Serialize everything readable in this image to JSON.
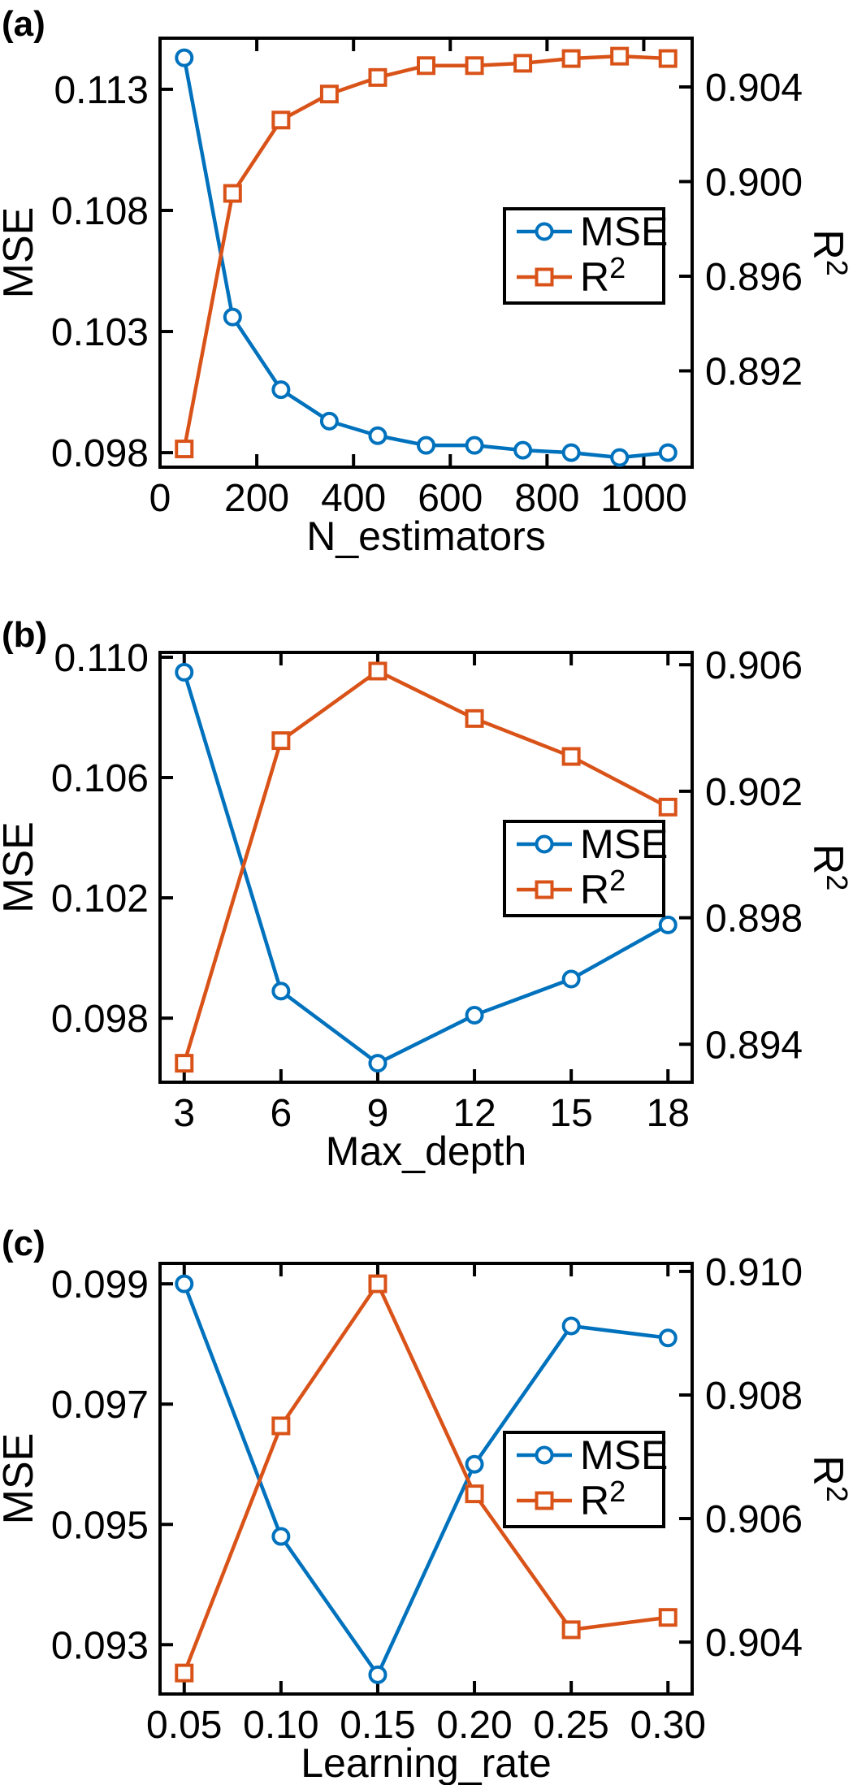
{
  "figure": {
    "description_colors": {
      "mse_line": "#0072BD",
      "r2_line": "#D95319",
      "axes": "#000000",
      "background": "#FFFFFF"
    }
  },
  "chart_data": [
    {
      "type": "line",
      "panel_label": "(a)",
      "xlabel": "N_estimators",
      "ylabel_left": "MSE",
      "ylabel_right": "R²",
      "ylabel_right_base": "R",
      "ylabel_right_sup": "2",
      "x": [
        50,
        150,
        250,
        350,
        450,
        550,
        650,
        750,
        850,
        950,
        1050
      ],
      "series": [
        {
          "id": "mse",
          "name": "MSE",
          "axis": "left",
          "color": "#0072BD",
          "marker": "circle",
          "values": [
            0.1143,
            0.1036,
            0.1006,
            0.0993,
            0.0987,
            0.0983,
            0.0983,
            0.0981,
            0.098,
            0.0978,
            0.098
          ]
        },
        {
          "id": "r2",
          "name": "R²",
          "legend_base": "R",
          "legend_sup": "2",
          "axis": "right",
          "color": "#D95319",
          "marker": "square",
          "values": [
            0.8887,
            0.8995,
            0.9026,
            0.9037,
            0.9044,
            0.9049,
            0.9049,
            0.905,
            0.9052,
            0.9053,
            0.9052
          ]
        }
      ],
      "xlim": [
        0,
        1100
      ],
      "ylim_left": [
        0.0974,
        0.11511
      ],
      "ylim_right": [
        0.88793,
        0.90606
      ],
      "xticks": [
        {
          "v": 0,
          "label": "0"
        },
        {
          "v": 200,
          "label": "200"
        },
        {
          "v": 400,
          "label": "400"
        },
        {
          "v": 600,
          "label": "600"
        },
        {
          "v": 800,
          "label": "800"
        },
        {
          "v": 1000,
          "label": "1000"
        }
      ],
      "yticks_left": [
        {
          "v": 0.098,
          "label": "0.098"
        },
        {
          "v": 0.103,
          "label": "0.103"
        },
        {
          "v": 0.108,
          "label": "0.108"
        },
        {
          "v": 0.113,
          "label": "0.113"
        }
      ],
      "yticks_right": [
        {
          "v": 0.892,
          "label": "0.892"
        },
        {
          "v": 0.896,
          "label": "0.896"
        },
        {
          "v": 0.9,
          "label": "0.900"
        },
        {
          "v": 0.904,
          "label": "0.904"
        }
      ],
      "legend": {
        "entries": [
          "MSE",
          "R²"
        ],
        "position": "middle-right"
      },
      "grid": false
    },
    {
      "type": "line",
      "panel_label": "(b)",
      "xlabel": "Max_depth",
      "ylabel_left": "MSE",
      "ylabel_right": "R²",
      "ylabel_right_base": "R",
      "ylabel_right_sup": "2",
      "x": [
        3,
        6,
        9,
        12,
        15,
        18
      ],
      "series": [
        {
          "id": "mse",
          "name": "MSE",
          "axis": "left",
          "color": "#0072BD",
          "marker": "circle",
          "values": [
            0.1095,
            0.0989,
            0.0965,
            0.0981,
            0.0993,
            0.1011
          ]
        },
        {
          "id": "r2",
          "name": "R²",
          "legend_base": "R",
          "legend_sup": "2",
          "axis": "right",
          "color": "#D95319",
          "marker": "square",
          "values": [
            0.8934,
            0.9036,
            0.9058,
            0.9043,
            0.9031,
            0.9015
          ]
        }
      ],
      "xlim": [
        2.25,
        18.75
      ],
      "ylim_left": [
        0.09587,
        0.11016
      ],
      "ylim_right": [
        0.8928,
        0.90639
      ],
      "xticks": [
        {
          "v": 3,
          "label": "3"
        },
        {
          "v": 6,
          "label": "6"
        },
        {
          "v": 9,
          "label": "9"
        },
        {
          "v": 12,
          "label": "12"
        },
        {
          "v": 15,
          "label": "15"
        },
        {
          "v": 18,
          "label": "18"
        }
      ],
      "yticks_left": [
        {
          "v": 0.098,
          "label": "0.098"
        },
        {
          "v": 0.102,
          "label": "0.102"
        },
        {
          "v": 0.106,
          "label": "0.106"
        },
        {
          "v": 0.11,
          "label": "0.110"
        }
      ],
      "yticks_right": [
        {
          "v": 0.894,
          "label": "0.894"
        },
        {
          "v": 0.898,
          "label": "0.898"
        },
        {
          "v": 0.902,
          "label": "0.902"
        },
        {
          "v": 0.906,
          "label": "0.906"
        }
      ],
      "legend": {
        "entries": [
          "MSE",
          "R²"
        ],
        "position": "middle-right"
      },
      "grid": false
    },
    {
      "type": "line",
      "panel_label": "(c)",
      "xlabel": "Learning_rate",
      "ylabel_left": "MSE",
      "ylabel_right": "R²",
      "ylabel_right_base": "R",
      "ylabel_right_sup": "2",
      "x": [
        0.05,
        0.1,
        0.15,
        0.2,
        0.25,
        0.3
      ],
      "series": [
        {
          "id": "mse",
          "name": "MSE",
          "axis": "left",
          "color": "#0072BD",
          "marker": "circle",
          "values": [
            0.099,
            0.0948,
            0.0925,
            0.096,
            0.0983,
            0.0981
          ]
        },
        {
          "id": "r2",
          "name": "R²",
          "legend_base": "R",
          "legend_sup": "2",
          "axis": "right",
          "color": "#D95319",
          "marker": "square",
          "values": [
            0.9035,
            0.9075,
            0.9098,
            0.9064,
            0.9042,
            0.9044
          ]
        }
      ],
      "xlim": [
        0.0375,
        0.3125
      ],
      "ylim_left": [
        0.09218,
        0.09934
      ],
      "ylim_right": [
        0.90316,
        0.91013
      ],
      "xticks": [
        {
          "v": 0.05,
          "label": "0.05"
        },
        {
          "v": 0.1,
          "label": "0.10"
        },
        {
          "v": 0.15,
          "label": "0.15"
        },
        {
          "v": 0.2,
          "label": "0.20"
        },
        {
          "v": 0.25,
          "label": "0.25"
        },
        {
          "v": 0.3,
          "label": "0.30"
        }
      ],
      "yticks_left": [
        {
          "v": 0.093,
          "label": "0.093"
        },
        {
          "v": 0.095,
          "label": "0.095"
        },
        {
          "v": 0.097,
          "label": "0.097"
        },
        {
          "v": 0.099,
          "label": "0.099"
        }
      ],
      "yticks_right": [
        {
          "v": 0.904,
          "label": "0.904"
        },
        {
          "v": 0.906,
          "label": "0.906"
        },
        {
          "v": 0.908,
          "label": "0.908"
        },
        {
          "v": 0.91,
          "label": "0.910"
        }
      ],
      "legend": {
        "entries": [
          "MSE",
          "R²"
        ],
        "position": "middle-right"
      },
      "grid": false
    }
  ]
}
